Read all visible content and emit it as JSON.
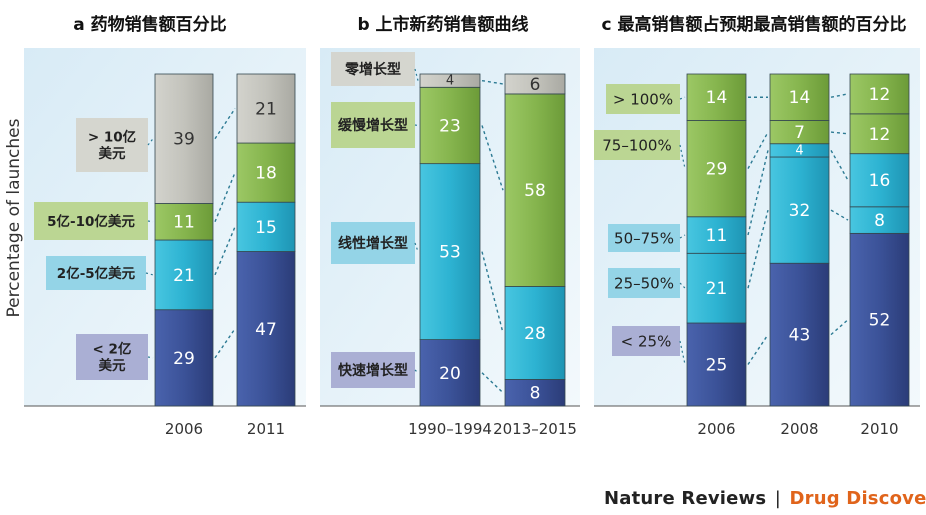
{
  "ylabel": "Percentage of launches",
  "credit": {
    "journal": "Nature Reviews",
    "separator": "|",
    "section": "Drug Discovery"
  },
  "colors": {
    "dark_blue": "#3a4f97",
    "cyan": "#2fb6d4",
    "green": "#86b54e",
    "gray": "#c3c3bc",
    "panel_bg": "#e4f1f9",
    "label_bg_gray": "#d4d4cc",
    "label_bg_green": "#b8d48d",
    "label_bg_cyan": "#8fd2e6",
    "label_bg_blue": "#a7abd2",
    "connector": "#2c7a93"
  },
  "chart_data": [
    {
      "type": "bar",
      "stacked": true,
      "title": "a 药物销售额百分比",
      "ylabel": "Percentage of launches",
      "categories": [
        "2006",
        "2011"
      ],
      "series": [
        {
          "name": "< 2亿美元",
          "label_lines": [
            "< 2亿",
            "美元"
          ],
          "color": "dark_blue",
          "values": [
            29,
            47
          ]
        },
        {
          "name": "2亿-5亿美元",
          "label_lines": [
            "2亿-5亿美元"
          ],
          "color": "cyan",
          "values": [
            21,
            15
          ]
        },
        {
          "name": "5亿-10亿美元",
          "label_lines": [
            "5亿-10亿美元"
          ],
          "color": "green",
          "values": [
            11,
            18
          ]
        },
        {
          "name": "> 10亿美元",
          "label_lines": [
            "> 10亿",
            "美元"
          ],
          "color": "gray",
          "values": [
            39,
            21
          ]
        }
      ]
    },
    {
      "type": "bar",
      "stacked": true,
      "title": "b 上市新药销售额曲线",
      "categories": [
        "1990–1994",
        "2013–2015"
      ],
      "series": [
        {
          "name": "快速增长型",
          "label_lines": [
            "快速增长型"
          ],
          "color": "dark_blue",
          "values": [
            20,
            8
          ]
        },
        {
          "name": "线性增长型",
          "label_lines": [
            "线性增长型"
          ],
          "color": "cyan",
          "values": [
            53,
            28
          ]
        },
        {
          "name": "缓慢增长型",
          "label_lines": [
            "缓慢增长型"
          ],
          "color": "green",
          "values": [
            23,
            58
          ]
        },
        {
          "name": "零增长型",
          "label_lines": [
            "零增长型"
          ],
          "color": "gray",
          "values": [
            4,
            6
          ]
        }
      ]
    },
    {
      "type": "bar",
      "stacked": true,
      "title": "c 最高销售额占预期最高销售额的百分比",
      "categories": [
        "2006",
        "2008",
        "2010"
      ],
      "series": [
        {
          "name": "< 25%",
          "label_lines": [
            "< 25%"
          ],
          "color": "dark_blue",
          "values": [
            25,
            43,
            52
          ]
        },
        {
          "name": "25–50%",
          "label_lines": [
            "25–50%"
          ],
          "color": "cyan",
          "values": [
            21,
            32,
            8
          ]
        },
        {
          "name": "50–75%",
          "label_lines": [
            "50–75%"
          ],
          "color": "cyan",
          "values": [
            11,
            4,
            16
          ]
        },
        {
          "name": "75–100%",
          "label_lines": [
            "75–100%"
          ],
          "color": "green",
          "values": [
            29,
            7,
            12
          ]
        },
        {
          "name": "> 100%",
          "label_lines": [
            "> 100%"
          ],
          "color": "green",
          "values": [
            14,
            14,
            12
          ]
        }
      ]
    }
  ]
}
